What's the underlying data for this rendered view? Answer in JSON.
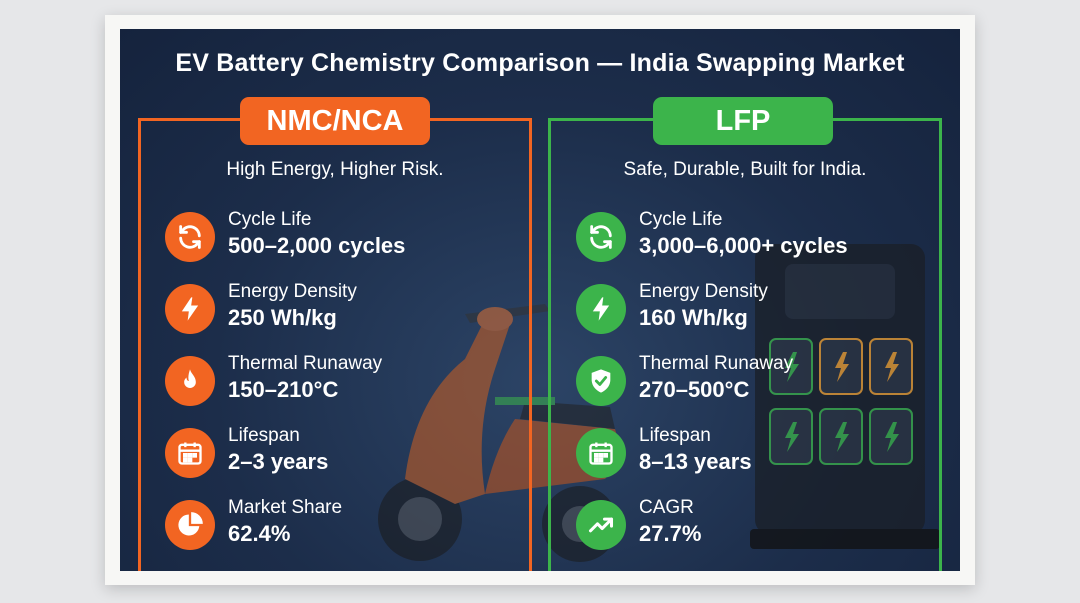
{
  "title": "EV Battery Chemistry Comparison — India Swapping Market",
  "colors": {
    "nmc_accent": "#f26522",
    "lfp_accent": "#3cb44b",
    "panel_bg": "#1c2d4a"
  },
  "nmc": {
    "badge": "NMC/NCA",
    "tagline": "High Energy, Higher Risk.",
    "metrics": [
      {
        "icon": "cycle-icon",
        "label": "Cycle Life",
        "value": "500–2,000 cycles"
      },
      {
        "icon": "lightning-icon",
        "label": "Energy Density",
        "value": "250 Wh/kg"
      },
      {
        "icon": "flame-icon",
        "label": "Thermal Runaway",
        "value": "150–210°C"
      },
      {
        "icon": "calendar-icon",
        "label": "Lifespan",
        "value": "2–3 years"
      },
      {
        "icon": "pie-chart-icon",
        "label": "Market Share",
        "value": "62.4%"
      }
    ]
  },
  "lfp": {
    "badge": "LFP",
    "tagline": "Safe, Durable, Built for India.",
    "metrics": [
      {
        "icon": "cycle-icon",
        "label": "Cycle Life",
        "value": "3,000–6,000+ cycles"
      },
      {
        "icon": "lightning-icon",
        "label": "Energy Density",
        "value": "160 Wh/kg"
      },
      {
        "icon": "shield-check-icon",
        "label": "Thermal Runaway",
        "value": "270–500°C"
      },
      {
        "icon": "calendar-icon",
        "label": "Lifespan",
        "value": "8–13 years"
      },
      {
        "icon": "trend-up-icon",
        "label": "CAGR",
        "value": "27.7%"
      }
    ]
  }
}
